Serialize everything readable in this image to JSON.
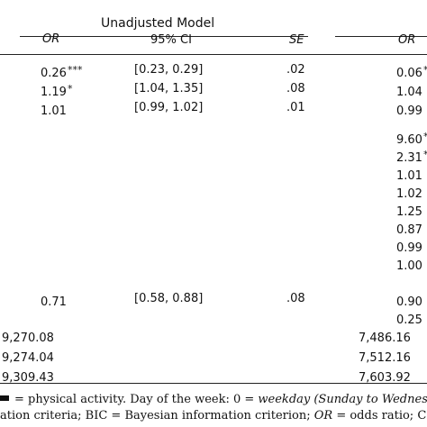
{
  "table": {
    "group_header_left": "Unadjusted Model",
    "columns": {
      "or_left": "OR",
      "ci": "95% CI",
      "se": "SE",
      "or_right": "OR"
    },
    "rows": [
      {
        "or": "0.26",
        "or_sup": "***",
        "ci": "[0.23, 0.29]",
        "se": ".02",
        "or2": "0.06",
        "or2_sup": "*"
      },
      {
        "or": "1.19",
        "or_sup": "*",
        "ci": "[1.04, 1.35]",
        "se": ".08",
        "or2": "1.04",
        "or2_sup": ""
      },
      {
        "or": "1.01",
        "or_sup": "",
        "ci": "[0.99, 1.02]",
        "se": ".01",
        "or2": "0.99",
        "or2_sup": ""
      },
      {
        "or": "",
        "or_sup": "",
        "ci": "",
        "se": "",
        "or2": "9.60",
        "or2_sup": "*"
      },
      {
        "or": "",
        "or_sup": "",
        "ci": "",
        "se": "",
        "or2": "2.31",
        "or2_sup": "*"
      },
      {
        "or": "",
        "or_sup": "",
        "ci": "",
        "se": "",
        "or2": "1.01",
        "or2_sup": ""
      },
      {
        "or": "",
        "or_sup": "",
        "ci": "",
        "se": "",
        "or2": "1.02",
        "or2_sup": ""
      },
      {
        "or": "",
        "or_sup": "",
        "ci": "",
        "se": "",
        "or2": "1.25",
        "or2_sup": ""
      },
      {
        "or": "",
        "or_sup": "",
        "ci": "",
        "se": "",
        "or2": "0.87",
        "or2_sup": ""
      },
      {
        "or": "",
        "or_sup": "",
        "ci": "",
        "se": "",
        "or2": "0.99",
        "or2_sup": ""
      },
      {
        "or": "",
        "or_sup": "",
        "ci": "",
        "se": "",
        "or2": "1.00",
        "or2_sup": ""
      },
      {
        "or": "0.71",
        "or_sup": "",
        "ci": "[0.58, 0.88]",
        "se": ".08",
        "or2": "0.90",
        "or2_sup": ""
      },
      {
        "or": "",
        "or_sup": "",
        "ci": "",
        "se": "",
        "or2": "0.25",
        "or2_sup": ""
      },
      {
        "or": "9,270.08",
        "or_sup": "",
        "ci": "",
        "se": "",
        "or2": "7,486.16",
        "or2_sup": ""
      },
      {
        "or": "9,274.04",
        "or_sup": "",
        "ci": "",
        "se": "",
        "or2": "7,512.16",
        "or2_sup": ""
      },
      {
        "or": "9,309.43",
        "or_sup": "",
        "ci": "",
        "se": "",
        "or2": "7,603.92",
        "or2_sup": ""
      }
    ]
  },
  "footnote": {
    "line1_a": "= physical activity. Day of the week: 0 =",
    "line1_b": "weekday (Sunday to Wednes",
    "line2_a": "ation criteria; BIC = Bayesian information criterion;",
    "line2_b": "OR",
    "line2_c": "= odds ratio; CI ="
  }
}
